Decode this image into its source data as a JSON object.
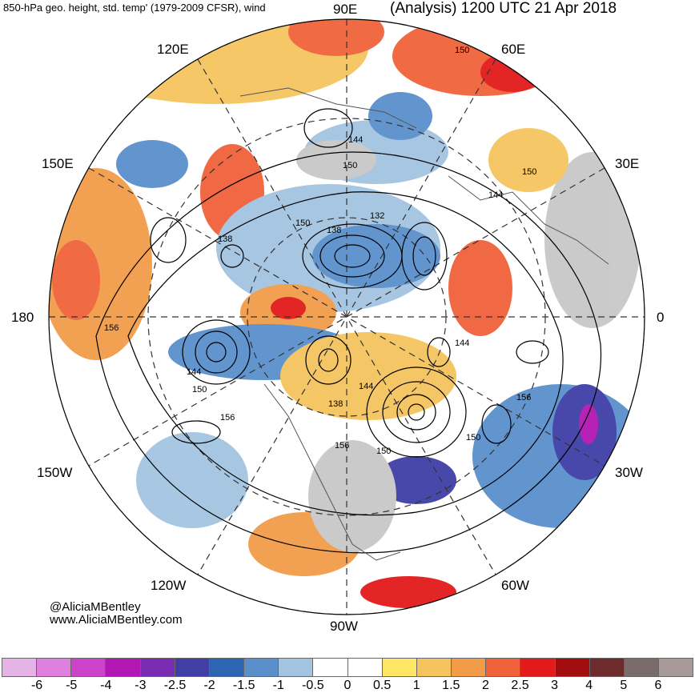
{
  "title": {
    "left": "850-hPa geo. height, std. temp' (1979-2009 CFSR), wind",
    "right": "(Analysis) 1200 UTC 21 Apr 2018"
  },
  "longitude_labels": {
    "lon_90e": "90E",
    "lon_120e": "120E",
    "lon_60e": "60E",
    "lon_150e": "150E",
    "lon_30e": "30E",
    "lon_180": "180",
    "lon_0": "0",
    "lon_150w": "150W",
    "lon_30w": "30W",
    "lon_120w": "120W",
    "lon_60w": "60W",
    "lon_90w": "90W"
  },
  "contour_labels": [
    "150",
    "144",
    "150",
    "150",
    "144",
    "132",
    "138",
    "150",
    "138",
    "156",
    "144",
    "150",
    "138",
    "144",
    "156",
    "144",
    "150",
    "156",
    "150",
    "156"
  ],
  "credit": {
    "twitter": "@AliciaMBentley",
    "website": "www.AliciaMBentley.com"
  },
  "colorbar": {
    "colors": [
      "#e6b3e6",
      "#df80df",
      "#cc44cc",
      "#b317b3",
      "#7a2db3",
      "#3f3fa6",
      "#2c66b3",
      "#5a8fcc",
      "#a3c4e0",
      "#ffffff",
      "#ffffff",
      "#ffe566",
      "#f5c45e",
      "#f29c4a",
      "#f0623a",
      "#e31a1a",
      "#a30d0d",
      "#6e2b2b",
      "#7a6c6c",
      "#a8999a"
    ],
    "ticks": [
      "-6",
      "-5",
      "-4",
      "-3",
      "-2.5",
      "-2",
      "-1.5",
      "-1",
      "-0.5",
      "0",
      "0.5",
      "1",
      "1.5",
      "2",
      "2.5",
      "3",
      "4",
      "5",
      "6"
    ]
  }
}
